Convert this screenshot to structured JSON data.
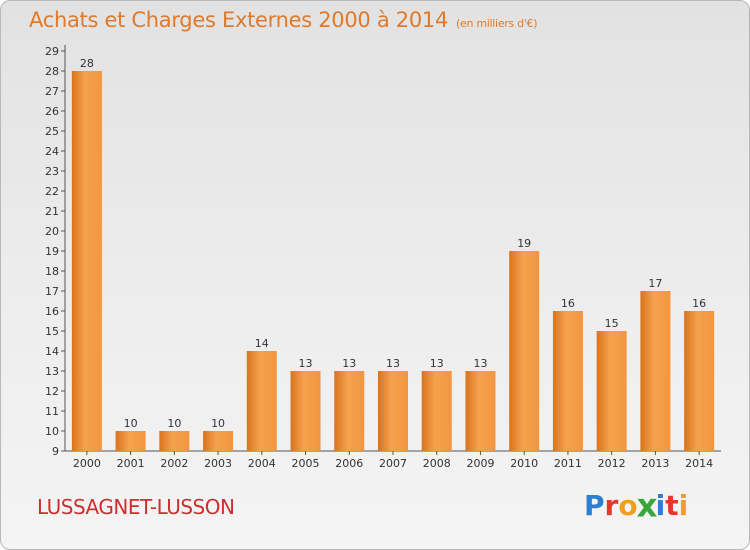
{
  "header": {
    "title": "Achats et Charges Externes 2000 à 2014",
    "subtitle": "(en milliers d'€)"
  },
  "footer": {
    "town": "LUSSAGNET-LUSSON",
    "logo_letters": [
      "P",
      "r",
      "o",
      "x",
      "i",
      "t",
      "i"
    ],
    "logo_colors": [
      "#2a7fd4",
      "#e03a2a",
      "#f0a020",
      "#3aa63a",
      "#2a7fd4",
      "#e03a2a",
      "#f0a020"
    ]
  },
  "colors": {
    "bar": "#f0963c",
    "title": "#e07a2a",
    "town": "#cf2e2e"
  },
  "chart_data": {
    "type": "bar",
    "title": "Achats et Charges Externes 2000 à 2014",
    "subtitle": "(en milliers d'€)",
    "categories": [
      "2000",
      "2001",
      "2002",
      "2003",
      "2004",
      "2005",
      "2006",
      "2007",
      "2008",
      "2009",
      "2010",
      "2011",
      "2012",
      "2013",
      "2014"
    ],
    "values": [
      28,
      10,
      10,
      10,
      14,
      13,
      13,
      13,
      13,
      13,
      19,
      16,
      15,
      17,
      16
    ],
    "ylim": [
      9,
      29
    ],
    "yticks": [
      9,
      10,
      11,
      12,
      13,
      14,
      15,
      16,
      17,
      18,
      19,
      20,
      21,
      22,
      23,
      24,
      25,
      26,
      27,
      28,
      29
    ],
    "xlabel": "",
    "ylabel": "",
    "grid": false
  }
}
